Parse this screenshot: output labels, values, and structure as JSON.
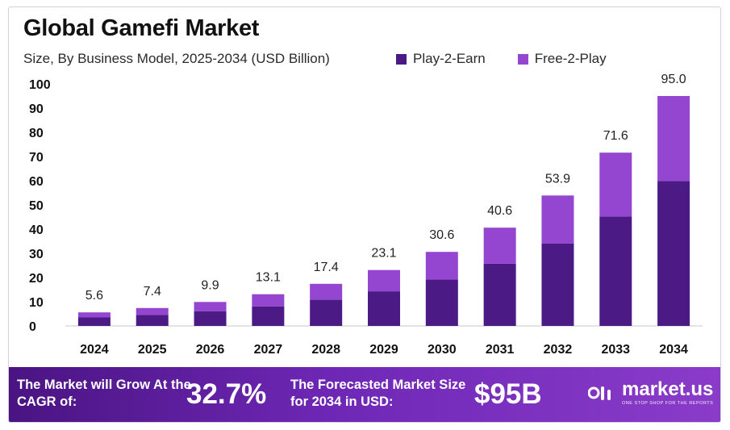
{
  "header": {
    "title": "Global Gamefi Market",
    "subtitle": "Size, By Business Model, 2025-2034 (USD Billion)"
  },
  "colors": {
    "play_2_earn": "#4c1a85",
    "free_2_play": "#9546d1",
    "footer_dark": "#4a1482",
    "footer_light": "#8a3cc9"
  },
  "chart_data": {
    "type": "bar",
    "stacked": true,
    "categories": [
      "2024",
      "2025",
      "2026",
      "2027",
      "2028",
      "2029",
      "2030",
      "2031",
      "2032",
      "2033",
      "2034"
    ],
    "series": [
      {
        "name": "Play-2-Earn",
        "values": [
          3.5,
          4.6,
          6.1,
          8.1,
          10.8,
          14.3,
          19.2,
          25.7,
          34.1,
          45.2,
          59.9
        ]
      },
      {
        "name": "Free-2-Play",
        "values": [
          2.1,
          2.8,
          3.8,
          5.0,
          6.6,
          8.8,
          11.4,
          14.9,
          19.8,
          26.4,
          35.1
        ]
      }
    ],
    "totals": [
      5.6,
      7.4,
      9.9,
      13.1,
      17.4,
      23.1,
      30.6,
      40.6,
      53.9,
      71.6,
      95.0
    ],
    "total_labels": [
      "5.6",
      "7.4",
      "9.9",
      "13.1",
      "17.4",
      "23.1",
      "30.6",
      "40.6",
      "53.9",
      "71.6",
      "95.0"
    ],
    "ylim": [
      0,
      100
    ],
    "yticks": [
      0,
      10,
      20,
      30,
      40,
      50,
      60,
      70,
      80,
      90,
      100
    ],
    "grid": false,
    "legend": "top-right"
  },
  "footer": {
    "cagr_label": "The Market will Grow At the CAGR of:",
    "cagr_value": "32.7%",
    "forecast_label": "The Forecasted Market Size for 2034 in USD:",
    "forecast_value": "$95B",
    "brand_name": "market.us",
    "brand_tagline": "ONE STOP SHOP FOR THE REPORTS"
  }
}
